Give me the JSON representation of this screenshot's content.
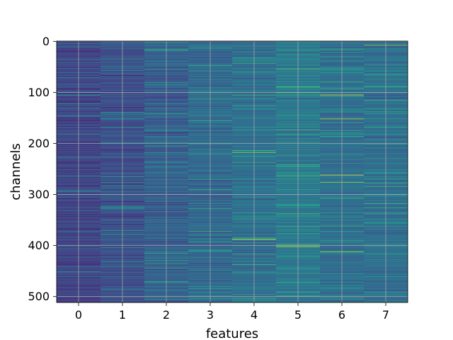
{
  "chart_data": {
    "type": "heatmap",
    "xlabel": "features",
    "ylabel": "channels",
    "x_ticks": [
      0,
      1,
      2,
      3,
      4,
      5,
      6,
      7
    ],
    "y_ticks": [
      0,
      100,
      200,
      300,
      400,
      500
    ],
    "xlim": [
      -0.5,
      7.5
    ],
    "ylim": [
      511.5,
      -0.5
    ],
    "n_features": 8,
    "n_channels": 512,
    "grid": true,
    "colormap": "viridis",
    "feature_typical_intensity": [
      0.2,
      0.24,
      0.3,
      0.34,
      0.36,
      0.4,
      0.36,
      0.36
    ],
    "bright_lines": [
      {
        "feature": 4,
        "channel": 388,
        "value": 0.97
      },
      {
        "feature": 4,
        "channel": 218,
        "value": 0.8
      },
      {
        "feature": 5,
        "channel": 402,
        "value": 0.95
      },
      {
        "feature": 5,
        "channel": 162,
        "value": 0.6
      },
      {
        "feature": 5,
        "channel": 68,
        "value": 0.6
      },
      {
        "feature": 6,
        "channel": 105,
        "value": 0.95
      },
      {
        "feature": 6,
        "channel": 152,
        "value": 0.9
      },
      {
        "feature": 6,
        "channel": 262,
        "value": 1.0
      },
      {
        "feature": 6,
        "channel": 276,
        "value": 0.85
      },
      {
        "feature": 6,
        "channel": 412,
        "value": 0.85
      },
      {
        "feature": 6,
        "channel": 222,
        "value": 0.6
      },
      {
        "feature": 6,
        "channel": 30,
        "value": 0.6
      },
      {
        "feature": 7,
        "channel": 8,
        "value": 0.85
      },
      {
        "feature": 7,
        "channel": 192,
        "value": 0.6
      },
      {
        "feature": 7,
        "channel": 416,
        "value": 0.6
      },
      {
        "feature": 3,
        "channel": 484,
        "value": 0.6
      },
      {
        "feature": 3,
        "channel": 155,
        "value": 0.6
      }
    ]
  }
}
